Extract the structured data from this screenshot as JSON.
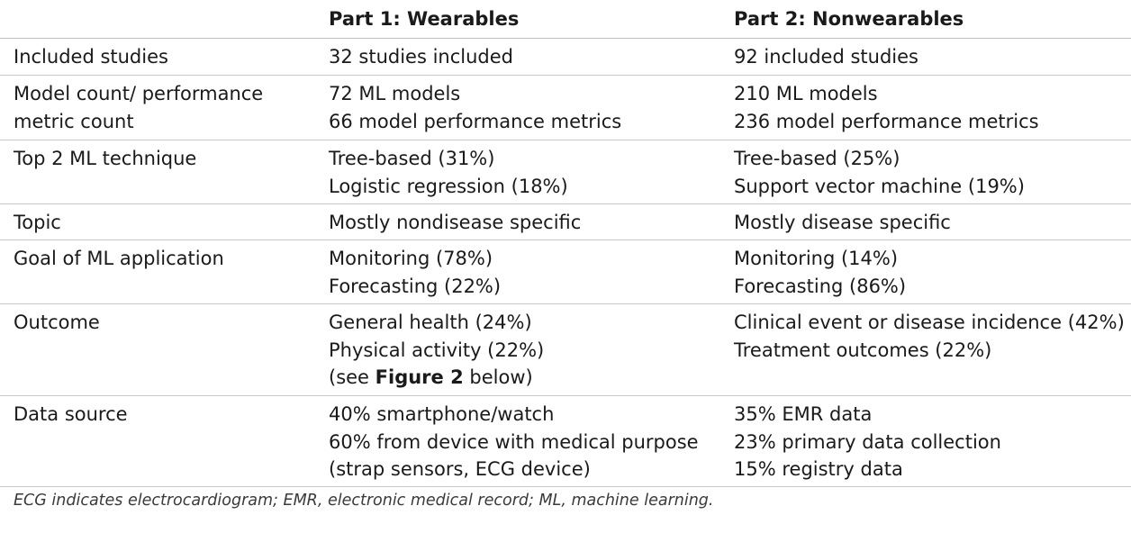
{
  "header": {
    "col0": "",
    "col1": "Part 1: Wearables",
    "col2": "Part 2: Nonwearables"
  },
  "rows": [
    {
      "label": "Included studies",
      "wearables": [
        "32 studies included"
      ],
      "nonwearables": [
        "92 included studies"
      ]
    },
    {
      "label_lines": [
        "Model count/ performance",
        "metric count"
      ],
      "wearables": [
        "72 ML models",
        "66 model performance metrics"
      ],
      "nonwearables": [
        "210 ML models",
        "236 model performance metrics"
      ]
    },
    {
      "label": "Top 2 ML technique",
      "wearables": [
        "Tree-based (31%)",
        "Logistic regression (18%)"
      ],
      "nonwearables": [
        "Tree-based (25%)",
        "Support vector machine (19%)"
      ]
    },
    {
      "label": "Topic",
      "wearables": [
        "Mostly nondisease specific"
      ],
      "nonwearables": [
        "Mostly disease specific"
      ]
    },
    {
      "label": "Goal of ML application",
      "wearables": [
        "Monitoring (78%)",
        "Forecasting (22%)"
      ],
      "nonwearables": [
        "Monitoring (14%)",
        "Forecasting (86%)"
      ]
    },
    {
      "label": "Outcome",
      "wearables": [
        "General health (24%)",
        "Physical activity (22%)"
      ],
      "wearables_ref": {
        "prefix": "(see ",
        "bold": "Figure 2",
        "suffix": " below)"
      },
      "nonwearables": [
        "Clinical event or disease incidence (42%)",
        "Treatment outcomes (22%)"
      ]
    },
    {
      "label": "Data source",
      "wearables": [
        "40% smartphone/watch",
        "60% from device with medical purpose",
        "(strap sensors, ECG device)"
      ],
      "nonwearables": [
        "35% EMR data",
        "23% primary data collection",
        "15% registry data"
      ]
    }
  ],
  "footnote": "ECG indicates electrocardiogram; EMR, electronic medical record; ML, machine learning."
}
